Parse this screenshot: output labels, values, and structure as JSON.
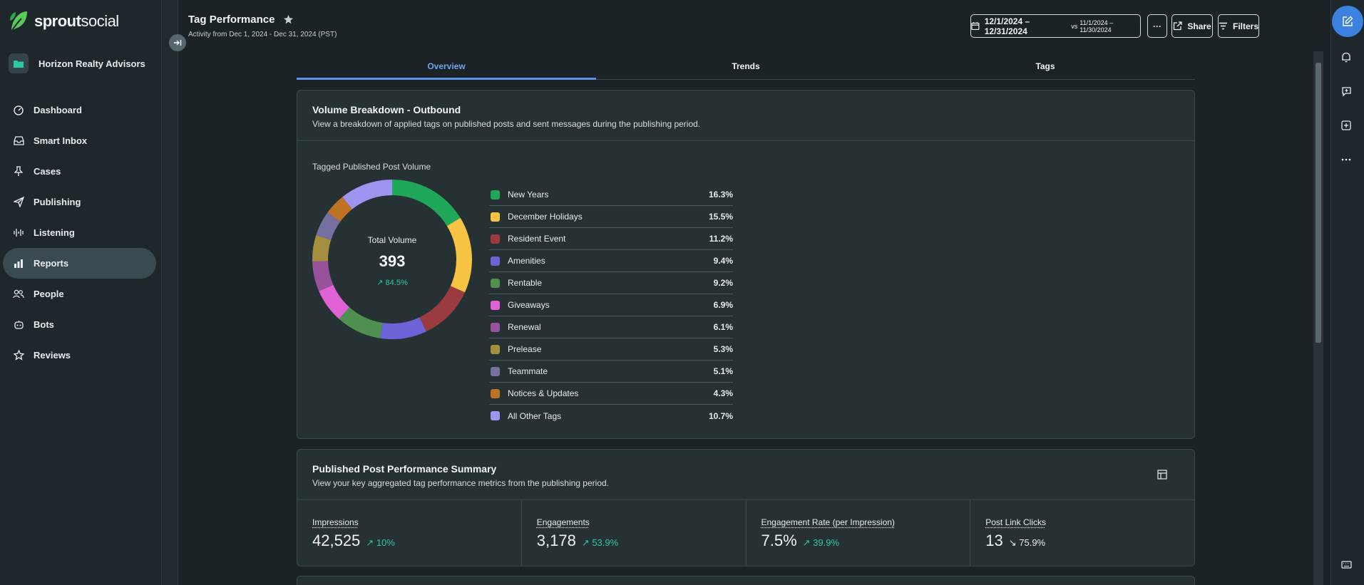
{
  "brand": {
    "logo_bold": "sprout",
    "logo_regular": "social",
    "accent": "#3c80e0",
    "leaf": "#59cb59"
  },
  "account": {
    "name": "Horizon Realty Advisors"
  },
  "nav": {
    "items": [
      {
        "label": "Dashboard",
        "icon": "dashboard-icon"
      },
      {
        "label": "Smart Inbox",
        "icon": "inbox-icon"
      },
      {
        "label": "Cases",
        "icon": "pin-icon"
      },
      {
        "label": "Publishing",
        "icon": "paper-plane-icon"
      },
      {
        "label": "Listening",
        "icon": "waveform-icon"
      },
      {
        "label": "Reports",
        "icon": "bar-chart-icon",
        "active": true
      },
      {
        "label": "People",
        "icon": "people-icon"
      },
      {
        "label": "Bots",
        "icon": "bot-icon"
      },
      {
        "label": "Reviews",
        "icon": "star-icon"
      }
    ]
  },
  "header": {
    "title": "Tag Performance",
    "subtitle": "Activity from Dec 1, 2024 - Dec 31, 2024 (PST)",
    "date_range": "12/1/2024 – 12/31/2024",
    "compare_prefix": "vs",
    "compare_range": "11/1/2024 – 11/30/2024",
    "more_label": "···",
    "share_label": "Share",
    "filters_label": "Filters"
  },
  "tabs": [
    {
      "label": "Overview",
      "active": true
    },
    {
      "label": "Trends"
    },
    {
      "label": "Tags"
    }
  ],
  "volume_card": {
    "title": "Volume Breakdown - Outbound",
    "description": "View a breakdown of applied tags on published posts and sent messages during the publishing period.",
    "chart_label": "Tagged Published Post Volume",
    "total_label": "Total Volume",
    "total_value": "393",
    "total_delta": "84.5%"
  },
  "chart_data": {
    "type": "pie",
    "title": "Tagged Published Post Volume",
    "center_label": "Total Volume",
    "center_value": 393,
    "categories": [
      "New Years",
      "December Holidays",
      "Resident Event",
      "Amenities",
      "Rentable",
      "Giveaways",
      "Renewal",
      "Prelease",
      "Teammate",
      "Notices & Updates",
      "All Other Tags"
    ],
    "values": [
      16.3,
      15.5,
      11.2,
      9.4,
      9.2,
      6.9,
      6.1,
      5.3,
      5.1,
      4.3,
      10.7
    ],
    "labels": [
      "16.3%",
      "15.5%",
      "11.2%",
      "9.4%",
      "9.2%",
      "6.9%",
      "6.1%",
      "5.3%",
      "5.1%",
      "4.3%",
      "10.7%"
    ],
    "colors": [
      "#1fa85a",
      "#f6c342",
      "#9b3a3f",
      "#6b63d6",
      "#4f8f4f",
      "#e062d5",
      "#97529b",
      "#a38f3e",
      "#75709f",
      "#bd7323",
      "#9e95f1"
    ]
  },
  "summary_card": {
    "title": "Published Post Performance Summary",
    "description": "View your key aggregated tag performance metrics from the publishing period.",
    "metrics": [
      {
        "label": "Impressions",
        "value": "42,525",
        "delta": "10%",
        "trend": "up"
      },
      {
        "label": "Engagements",
        "value": "3,178",
        "delta": "53.9%",
        "trend": "up"
      },
      {
        "label": "Engagement Rate (per Impression)",
        "value": "7.5%",
        "delta": "39.9%",
        "trend": "up"
      },
      {
        "label": "Post Link Clicks",
        "value": "13",
        "delta": "75.9%",
        "trend": "down"
      }
    ]
  }
}
